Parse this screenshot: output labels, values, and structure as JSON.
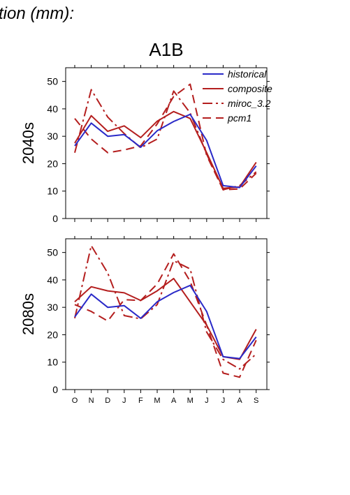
{
  "header": {
    "text": "tion (mm):"
  },
  "figure_title": "A1B",
  "legend": [
    {
      "name": "historical",
      "color": "#2a2ac8",
      "dash": "solid"
    },
    {
      "name": "composite",
      "color": "#b41e1e",
      "dash": "solid"
    },
    {
      "name": "miroc_3.2",
      "color": "#b41e1e",
      "dash": "dashdot"
    },
    {
      "name": "pcm1",
      "color": "#b41e1e",
      "dash": "dashed"
    }
  ],
  "chart_data": [
    {
      "type": "line",
      "ylabel": "2040s",
      "ylim": [
        0,
        55
      ],
      "yticks": [
        0,
        10,
        20,
        30,
        40,
        50
      ],
      "categories": [
        "O",
        "N",
        "D",
        "J",
        "F",
        "M",
        "A",
        "M",
        "J",
        "J",
        "A",
        "S"
      ],
      "legend_position": "top-right",
      "series": [
        {
          "name": "historical",
          "values": [
            26.5,
            34.8,
            30.0,
            30.6,
            26.0,
            32.0,
            35.4,
            38.0,
            28.5,
            12.0,
            11.3,
            19.2
          ]
        },
        {
          "name": "composite",
          "values": [
            27.5,
            37.5,
            31.8,
            33.8,
            29.5,
            35.5,
            39.0,
            36.5,
            24.0,
            11.0,
            11.5,
            20.5
          ]
        },
        {
          "name": "miroc_3.2",
          "values": [
            24.0,
            47.0,
            37.0,
            31.0,
            25.8,
            29.0,
            46.5,
            38.5,
            23.5,
            10.5,
            12.0,
            17.0
          ]
        },
        {
          "name": "pcm1",
          "values": [
            36.5,
            29.0,
            24.0,
            25.0,
            26.5,
            34.5,
            44.5,
            49.0,
            23.0,
            10.5,
            10.8,
            16.5
          ]
        }
      ]
    },
    {
      "type": "line",
      "ylabel": "2080s",
      "ylim": [
        0,
        55
      ],
      "yticks": [
        0,
        10,
        20,
        30,
        40,
        50
      ],
      "categories": [
        "O",
        "N",
        "D",
        "J",
        "F",
        "M",
        "A",
        "M",
        "J",
        "J",
        "A",
        "S"
      ],
      "series": [
        {
          "name": "historical",
          "values": [
            26.5,
            34.8,
            30.0,
            30.6,
            26.0,
            32.0,
            35.4,
            38.0,
            28.5,
            12.0,
            11.3,
            19.2
          ]
        },
        {
          "name": "composite",
          "values": [
            32.0,
            37.5,
            36.0,
            35.3,
            32.5,
            36.0,
            40.5,
            32.0,
            23.5,
            12.0,
            11.0,
            22.0
          ]
        },
        {
          "name": "miroc_3.2",
          "values": [
            26.0,
            52.5,
            42.5,
            27.0,
            25.8,
            31.0,
            47.0,
            44.0,
            21.0,
            11.0,
            7.5,
            13.0
          ]
        },
        {
          "name": "pcm1",
          "values": [
            31.0,
            28.5,
            25.0,
            32.8,
            32.5,
            38.5,
            49.5,
            39.5,
            23.5,
            6.0,
            4.5,
            18.0
          ]
        }
      ]
    }
  ]
}
